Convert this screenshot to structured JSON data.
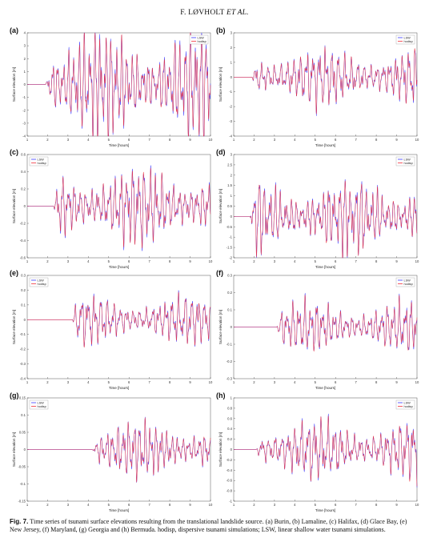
{
  "header": {
    "author": "F. LØVHOLT",
    "etal": "ET AL."
  },
  "panels": [
    {
      "label": "(a)",
      "ylabel": "Surface elevation [m]",
      "xlabel": "Time [hours]",
      "xticks": [
        "1",
        "2",
        "3",
        "4",
        "5",
        "6",
        "7",
        "8",
        "9",
        "10"
      ],
      "yticks": [
        "-4",
        "-3",
        "-2",
        "-1",
        "0",
        "1",
        "2",
        "3",
        "4"
      ],
      "legend": [
        "LSW",
        "hodisp"
      ]
    },
    {
      "label": "(b)",
      "ylabel": "Surface elevation [m]",
      "xlabel": "Time [hours]",
      "xticks": [
        "1",
        "2",
        "3",
        "4",
        "5",
        "6",
        "7",
        "8",
        "9",
        "10"
      ],
      "yticks": [
        "-4",
        "-3",
        "-2",
        "-1",
        "0",
        "1",
        "2",
        "3"
      ],
      "legend": [
        "LSW",
        "hodisp"
      ]
    },
    {
      "label": "(c)",
      "ylabel": "Surface elevation [m]",
      "xlabel": "Time [hours]",
      "xticks": [
        "1",
        "2",
        "3",
        "4",
        "5",
        "6",
        "7",
        "8",
        "9",
        "10"
      ],
      "yticks": [
        "-0.6",
        "-0.4",
        "-0.2",
        "0",
        "0.2",
        "0.4",
        "0.6"
      ],
      "legend": [
        "LSW",
        "hodisp"
      ]
    },
    {
      "label": "(d)",
      "ylabel": "Surface elevation [m]",
      "xlabel": "Time [hours]",
      "xticks": [
        "1",
        "2",
        "3",
        "4",
        "5",
        "6",
        "7",
        "8",
        "9",
        "10"
      ],
      "yticks": [
        "-2",
        "-1.5",
        "-1",
        "-0.5",
        "0",
        "0.5",
        "1",
        "1.5",
        "2",
        "2.5",
        "3"
      ],
      "legend": [
        "LSW",
        "hodisp"
      ]
    },
    {
      "label": "(e)",
      "ylabel": "Surface elevation [m]",
      "xlabel": "Time [hours]",
      "xticks": [
        "1",
        "2",
        "3",
        "4",
        "5",
        "6",
        "7",
        "8",
        "9",
        "10"
      ],
      "yticks": [
        "-0.4",
        "-0.3",
        "-0.2",
        "-0.1",
        "0",
        "0.1",
        "0.2",
        "0.3"
      ],
      "legend": [
        "LSW",
        "hodisp"
      ]
    },
    {
      "label": "(f)",
      "ylabel": "Surface elevation [m]",
      "xlabel": "Time [hours]",
      "xticks": [
        "1",
        "2",
        "3",
        "4",
        "5",
        "6",
        "7",
        "8",
        "9",
        "10"
      ],
      "yticks": [
        "-0.3",
        "-0.2",
        "-0.1",
        "0",
        "0.1",
        "0.2",
        "0.3"
      ],
      "legend": [
        "LSW",
        "hodisp"
      ]
    },
    {
      "label": "(g)",
      "ylabel": "Surface elevation [m]",
      "xlabel": "Time [hours]",
      "xticks": [
        "1",
        "2",
        "3",
        "4",
        "5",
        "6",
        "7",
        "8",
        "9",
        "10"
      ],
      "yticks": [
        "-0.15",
        "-0.1",
        "-0.05",
        "0",
        "0.05",
        "0.1",
        "0.15"
      ],
      "legend": [
        "LSW",
        "hodisp"
      ]
    },
    {
      "label": "(h)",
      "ylabel": "Surface elevation [m]",
      "xlabel": "Time [hours]",
      "xticks": [
        "1",
        "2",
        "3",
        "4",
        "5",
        "6",
        "7",
        "8",
        "9",
        "10"
      ],
      "yticks": [
        "-1",
        "-0.8",
        "-0.6",
        "-0.4",
        "-0.2",
        "0",
        "0.2",
        "0.4",
        "0.6",
        "0.8",
        "1"
      ],
      "legend": [
        "LSW",
        "hodisp"
      ]
    }
  ],
  "caption": {
    "figlabel": "Fig. 7.",
    "text": "Time series of tsunami surface elevations resulting from the translational landslide source. (a) Burin, (b) Lamaline, (c) Halifax, (d) Glace Bay, (e) New Jersey, (f) Maryland, (g) Georgia and (h) Bermuda. hodisp, dispersive tsunami simulations; LSW, linear shallow water tsunami simulations."
  },
  "colors": {
    "lsw": "#3b3bff",
    "hodisp": "#f0303a"
  },
  "chart_data": [
    {
      "type": "line",
      "ylabel": "Surface elevation [m]",
      "xlabel": "Time [hours]",
      "xlim": [
        1,
        10
      ],
      "ylim": [
        -4,
        4
      ],
      "onset": 1.9,
      "amp": 2.6,
      "series": [
        {
          "name": "LSW"
        },
        {
          "name": "hodisp"
        }
      ]
    },
    {
      "type": "line",
      "ylabel": "Surface elevation [m]",
      "xlabel": "Time [hours]",
      "xlim": [
        1,
        10
      ],
      "ylim": [
        -4,
        3
      ],
      "onset": 1.9,
      "amp": 1.2,
      "series": [
        {
          "name": "LSW"
        },
        {
          "name": "hodisp"
        }
      ]
    },
    {
      "type": "line",
      "ylabel": "Surface elevation [m]",
      "xlabel": "Time [hours]",
      "xlim": [
        1,
        10
      ],
      "ylim": [
        -0.6,
        0.6
      ],
      "onset": 2.3,
      "amp": 0.28,
      "series": [
        {
          "name": "LSW"
        },
        {
          "name": "hodisp"
        }
      ]
    },
    {
      "type": "line",
      "ylabel": "Surface elevation [m]",
      "xlabel": "Time [hours]",
      "xlim": [
        1,
        10
      ],
      "ylim": [
        -2,
        3
      ],
      "onset": 1.8,
      "amp": 1.1,
      "series": [
        {
          "name": "LSW"
        },
        {
          "name": "hodisp"
        }
      ]
    },
    {
      "type": "line",
      "ylabel": "Surface elevation [m]",
      "xlabel": "Time [hours]",
      "xlim": [
        1,
        10
      ],
      "ylim": [
        -0.4,
        0.3
      ],
      "onset": 3.2,
      "amp": 0.1,
      "series": [
        {
          "name": "LSW"
        },
        {
          "name": "hodisp"
        }
      ]
    },
    {
      "type": "line",
      "ylabel": "Surface elevation [m]",
      "xlabel": "Time [hours]",
      "xlim": [
        1,
        10
      ],
      "ylim": [
        -0.3,
        0.3
      ],
      "onset": 3.1,
      "amp": 0.09,
      "series": [
        {
          "name": "LSW"
        },
        {
          "name": "hodisp"
        }
      ]
    },
    {
      "type": "line",
      "ylabel": "Surface elevation [m]",
      "xlabel": "Time [hours]",
      "xlim": [
        1,
        10
      ],
      "ylim": [
        -0.15,
        0.15
      ],
      "onset": 4.2,
      "amp": 0.05,
      "series": [
        {
          "name": "LSW"
        },
        {
          "name": "hodisp"
        }
      ]
    },
    {
      "type": "line",
      "ylabel": "Surface elevation [m]",
      "xlabel": "Time [hours]",
      "xlim": [
        1,
        10
      ],
      "ylim": [
        -1,
        1
      ],
      "onset": 2.1,
      "amp": 0.35,
      "series": [
        {
          "name": "LSW"
        },
        {
          "name": "hodisp"
        }
      ]
    }
  ]
}
